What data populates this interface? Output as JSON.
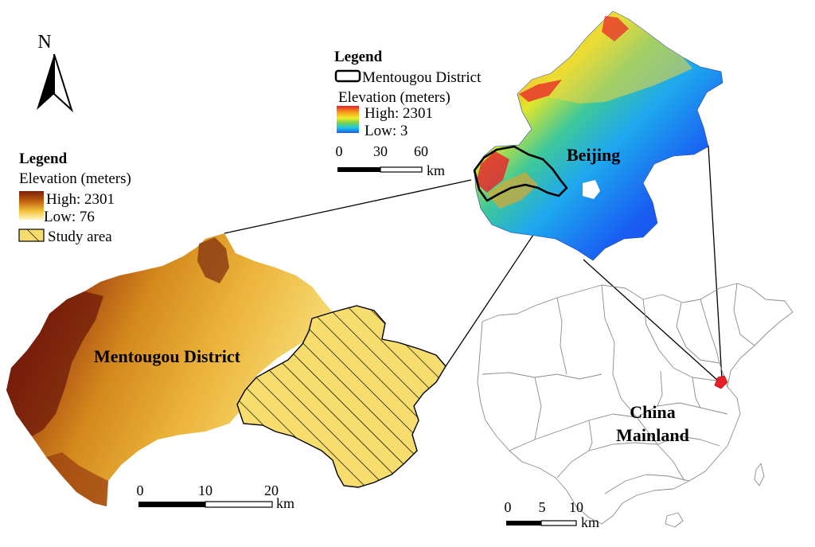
{
  "north_arrow": {
    "label": "N"
  },
  "beijing_legend": {
    "title": "Legend",
    "boundary_label": "Mentougou District",
    "elevation_title": "Elevation (meters)",
    "high": "High: 2301",
    "low": "Low: 3",
    "ramp_colors": [
      "#e8202a",
      "#f6a21c",
      "#f3ec2a",
      "#7ad24a",
      "#1ec8e0",
      "#1a5cf2"
    ]
  },
  "mentougou_legend": {
    "title": "Legend",
    "elevation_title": "Elevation (meters)",
    "high": "High: 2301",
    "low": "Low: 76",
    "study_area": "Study area",
    "ramp_colors": [
      "#7a1e0c",
      "#c0620f",
      "#f2c23c",
      "#fff7c0"
    ]
  },
  "scale_beijing": {
    "ticks": [
      "0",
      "30",
      "60"
    ],
    "unit": "km"
  },
  "scale_mentougou": {
    "ticks": [
      "0",
      "10",
      "20"
    ],
    "unit": "km"
  },
  "scale_china": {
    "ticks": [
      "0",
      "5",
      "10"
    ],
    "unit": "km"
  },
  "labels": {
    "beijing": "Beijing",
    "mentougou": "Mentougou District",
    "china_line1": "China",
    "china_line2": "Mainland"
  },
  "colors": {
    "beijing_highlight": "#e8202a",
    "boundary": "#000000",
    "china_province_lines": "#8a8a8a"
  }
}
